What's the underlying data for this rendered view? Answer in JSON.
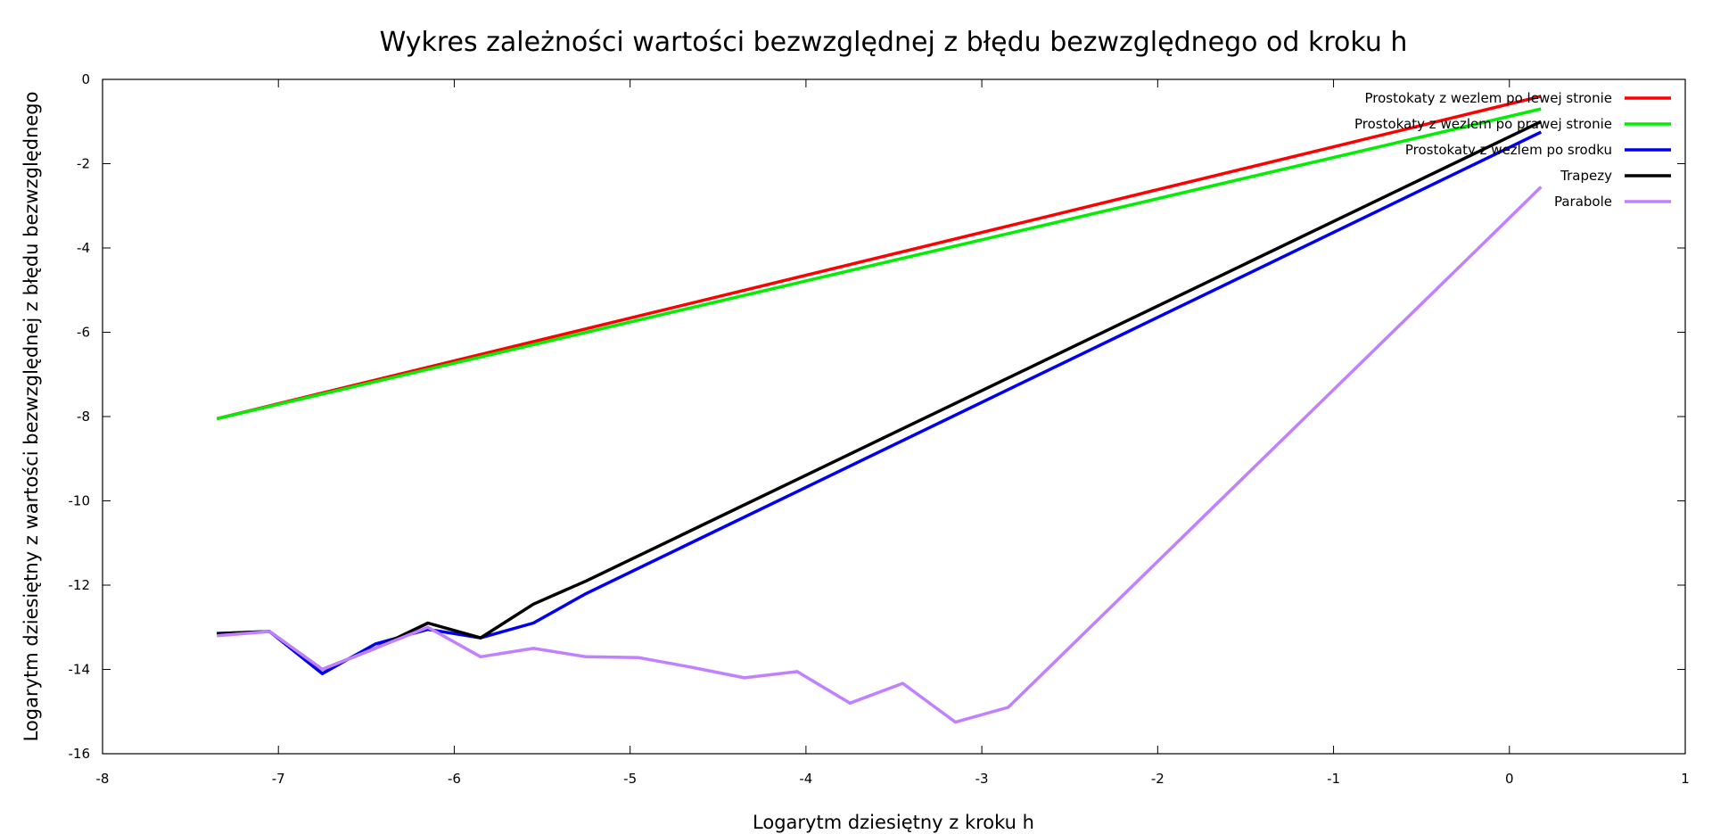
{
  "chart_data": {
    "type": "line",
    "title": "Wykres zależności wartości bezwzględnej z błędu bezwzględnego od kroku h",
    "xlabel": "Logarytm dziesiętny z kroku h",
    "ylabel": "Logarytm dziesiętny z wartości bezwzględnej z błędu bezwzględnego",
    "xlim": [
      -8,
      1
    ],
    "ylim": [
      -16,
      0
    ],
    "xticks": [
      -8,
      -7,
      -6,
      -5,
      -4,
      -3,
      -2,
      -1,
      0,
      1
    ],
    "yticks": [
      0,
      -2,
      -4,
      -6,
      -8,
      -10,
      -12,
      -14,
      -16
    ],
    "grid": false,
    "legend_position": "top-right",
    "series": [
      {
        "name": "Prostokaty z wezlem po lewej stronie",
        "color": "#ff0000",
        "x": [
          -7.35,
          0.18
        ],
        "y": [
          -8.05,
          -0.4
        ]
      },
      {
        "name": "Prostokaty z wezlem po prawej stronie",
        "color": "#00ee00",
        "x": [
          -7.35,
          0.18
        ],
        "y": [
          -8.05,
          -0.7
        ]
      },
      {
        "name": "Prostokaty z wezlem po srodku",
        "color": "#0000ee",
        "x": [
          -7.35,
          -7.05,
          -6.75,
          -6.45,
          -6.15,
          -5.85,
          -5.55,
          -5.25,
          0.18
        ],
        "y": [
          -13.15,
          -13.1,
          -14.1,
          -13.4,
          -13.05,
          -13.25,
          -12.9,
          -12.2,
          -1.25
        ]
      },
      {
        "name": "Trapezy",
        "color": "#000000",
        "x": [
          -7.35,
          -7.05,
          -6.75,
          -6.45,
          -6.15,
          -5.85,
          -5.55,
          -5.25,
          0.18
        ],
        "y": [
          -13.15,
          -13.1,
          -14.0,
          -13.5,
          -12.9,
          -13.25,
          -12.45,
          -11.9,
          -1.0
        ]
      },
      {
        "name": "Parabole",
        "color": "#c080ff",
        "x": [
          -7.35,
          -7.05,
          -6.75,
          -6.45,
          -6.15,
          -5.85,
          -5.55,
          -5.25,
          -4.95,
          -4.65,
          -4.35,
          -4.05,
          -3.75,
          -3.45,
          -3.15,
          -2.85,
          -0.15,
          0.18
        ],
        "y": [
          -13.2,
          -13.1,
          -14.0,
          -13.5,
          -13.0,
          -13.7,
          -13.5,
          -13.7,
          -13.72,
          -13.95,
          -14.2,
          -14.05,
          -14.8,
          -14.33,
          -15.25,
          -14.9,
          -3.9,
          -2.55
        ]
      }
    ]
  }
}
